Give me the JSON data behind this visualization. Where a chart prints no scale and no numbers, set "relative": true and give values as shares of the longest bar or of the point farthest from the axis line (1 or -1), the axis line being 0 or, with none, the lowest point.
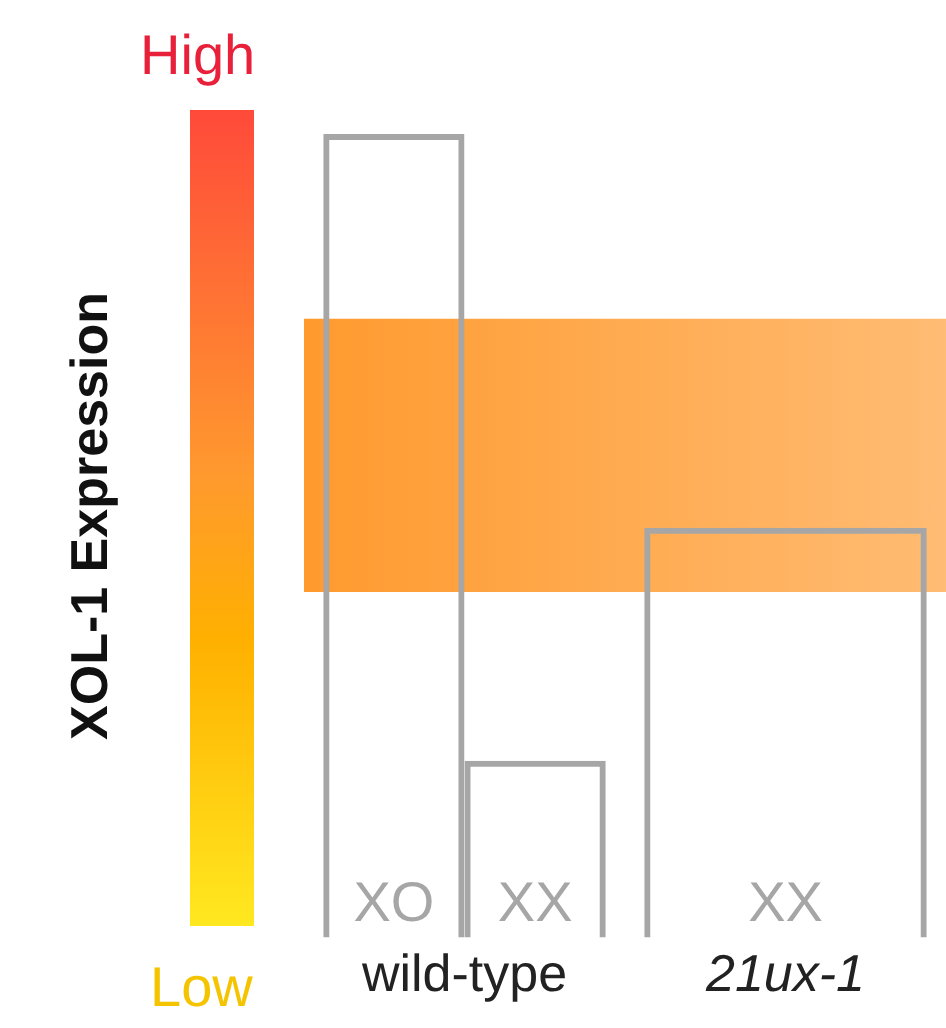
{
  "chart_data": {
    "type": "bar",
    "ylabel": "XOL-1 Expression",
    "relative": true,
    "categories": [
      "wild-type",
      "21ux-1"
    ],
    "series": [
      {
        "name": "XO",
        "color": "#a6a6a6",
        "values": [
          1,
          null
        ]
      },
      {
        "name": "XX",
        "color": "#a6a6a6",
        "values": [
          0.22,
          0.51
        ]
      }
    ],
    "bands": [
      {
        "axis": "y",
        "from": 0.43,
        "to": 0.77,
        "color": "#ff9a2e"
      }
    ],
    "annotations": [
      "High",
      "Low"
    ],
    "grid": false,
    "legend": false
  }
}
